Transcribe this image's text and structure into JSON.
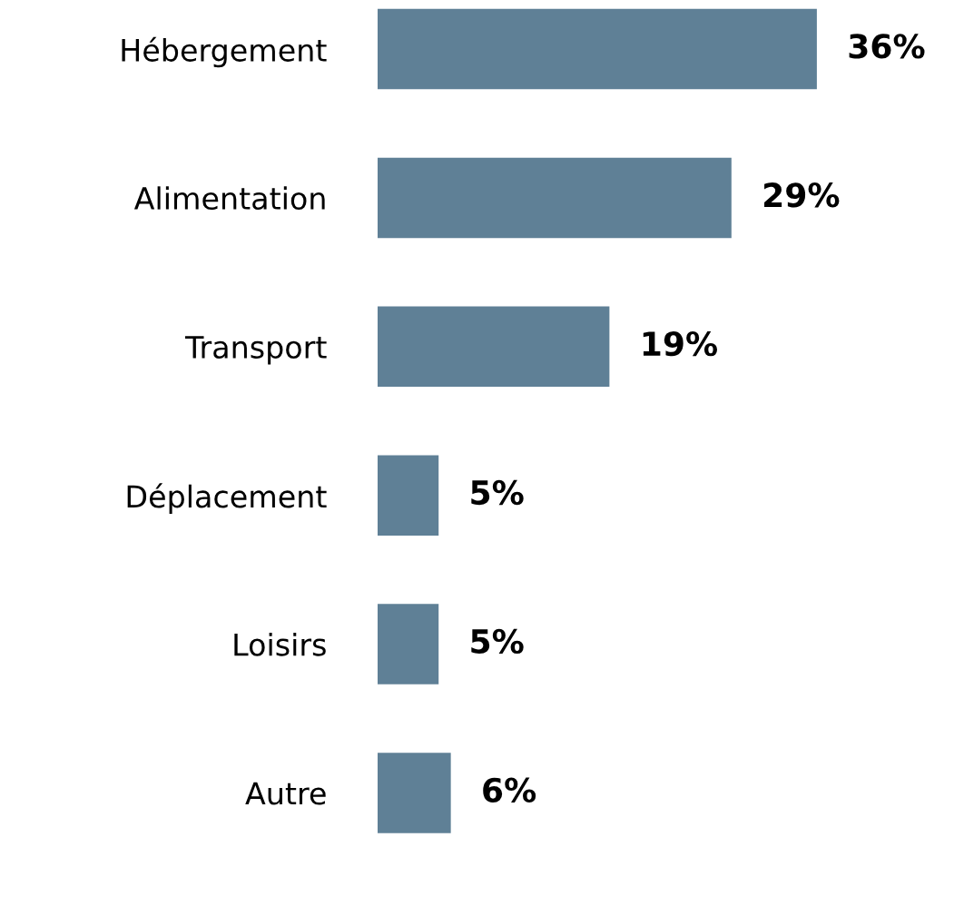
{
  "chart_data": {
    "type": "bar",
    "orientation": "horizontal",
    "categories": [
      "Hébergement",
      "Alimentation",
      "Transport",
      "Déplacement",
      "Loisirs",
      "Autre"
    ],
    "values": [
      36,
      29,
      19,
      5,
      5,
      6
    ],
    "value_labels": [
      "36%",
      "29%",
      "19%",
      "5%",
      "5%",
      "6%"
    ],
    "color": "#5f8096"
  }
}
